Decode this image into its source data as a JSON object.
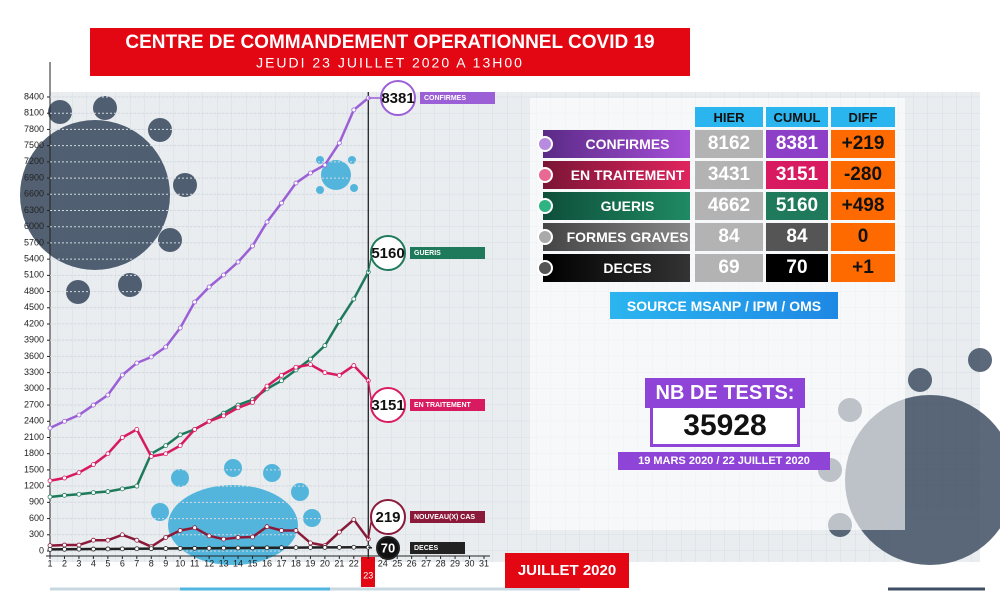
{
  "header": {
    "title": "CENTRE DE COMMANDEMENT OPERATIONNEL COVID 19",
    "subtitle": "JEUDI 23 JUILLET 2020 A 13H00"
  },
  "chart_data": {
    "type": "line",
    "x_label": "JUILLET 2020",
    "x": [
      1,
      2,
      3,
      4,
      5,
      6,
      7,
      8,
      9,
      10,
      11,
      12,
      13,
      14,
      15,
      16,
      17,
      18,
      19,
      20,
      21,
      22,
      23
    ],
    "xlim": [
      1,
      31
    ],
    "xticks": [
      1,
      2,
      3,
      4,
      5,
      6,
      7,
      8,
      9,
      10,
      11,
      12,
      13,
      14,
      15,
      16,
      17,
      18,
      19,
      20,
      21,
      22,
      23,
      24,
      25,
      26,
      27,
      28,
      29,
      30,
      31
    ],
    "ylim": [
      0,
      8400
    ],
    "yticks": [
      0,
      300,
      600,
      900,
      1200,
      1500,
      1800,
      2100,
      2400,
      2700,
      3000,
      3300,
      3600,
      3900,
      4200,
      4500,
      4800,
      5100,
      5400,
      5700,
      6000,
      6300,
      6600,
      6900,
      7200,
      7500,
      7800,
      8100,
      8400
    ],
    "grid": true,
    "series": [
      {
        "name": "CONFIRMES",
        "color": "#9b5fd6",
        "values": [
          2276,
          2400,
          2516,
          2700,
          2886,
          3256,
          3478,
          3590,
          3775,
          4126,
          4607,
          4885,
          5107,
          5347,
          5643,
          6087,
          6438,
          6808,
          6994,
          7142,
          7549,
          8162,
          8381
        ]
      },
      {
        "name": "GUERIS",
        "color": "#1e7a5a",
        "values": [
          1000,
          1030,
          1050,
          1080,
          1100,
          1150,
          1200,
          1800,
          1950,
          2150,
          2250,
          2400,
          2550,
          2700,
          2800,
          3000,
          3150,
          3350,
          3550,
          3800,
          4250,
          4662,
          5160
        ]
      },
      {
        "name": "EN TRAITEMENT",
        "color": "#d81b60",
        "values": [
          1300,
          1350,
          1450,
          1600,
          1800,
          2100,
          2250,
          1750,
          1800,
          1950,
          2250,
          2400,
          2500,
          2650,
          2750,
          3050,
          3250,
          3400,
          3450,
          3300,
          3250,
          3431,
          3151
        ]
      },
      {
        "name": "NOUVEAU(X) CAS",
        "color": "#8b1a3a",
        "values": [
          100,
          110,
          110,
          200,
          200,
          300,
          200,
          80,
          250,
          380,
          430,
          280,
          220,
          250,
          260,
          450,
          380,
          380,
          150,
          100,
          350,
          580,
          219
        ]
      },
      {
        "name": "DECES",
        "color": "#222222",
        "values": [
          30,
          32,
          34,
          36,
          38,
          40,
          42,
          44,
          46,
          48,
          50,
          52,
          54,
          55,
          57,
          59,
          61,
          63,
          65,
          66,
          67,
          69,
          70
        ]
      }
    ]
  },
  "table": {
    "headers": [
      "HIER",
      "CUMUL",
      "DIFF"
    ],
    "rows": [
      [
        "CONFIRMES",
        "8162",
        "8381",
        "+219"
      ],
      [
        "EN TRAITEMENT",
        "3431",
        "3151",
        "-280"
      ],
      [
        "GUERIS",
        "4662",
        "5160",
        "+498"
      ],
      [
        "FORMES GRAVES",
        "84",
        "84",
        "0"
      ],
      [
        "DECES",
        "69",
        "70",
        "+1"
      ]
    ],
    "source": "SOURCE MSANP / IPM / OMS"
  },
  "tests": {
    "title": "NB DE TESTS:",
    "value": "35928",
    "period": "19 MARS 2020 / 22 JUILLET 2020"
  }
}
